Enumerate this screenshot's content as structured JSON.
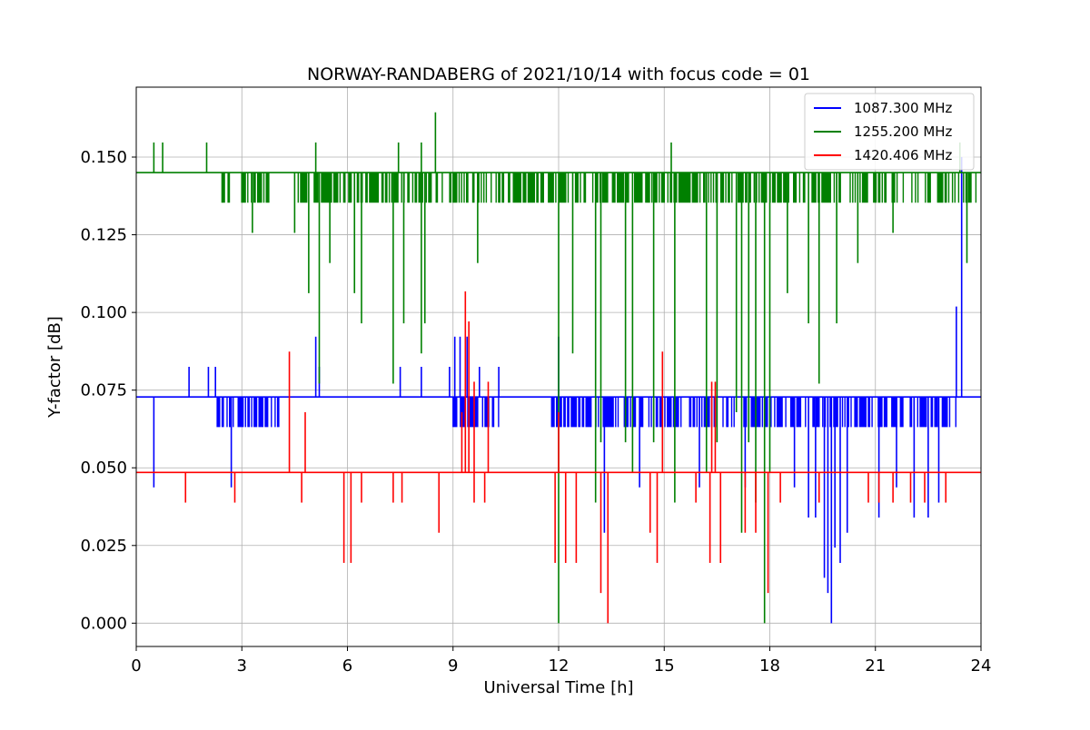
{
  "chart_data": {
    "type": "line",
    "title": "NORWAY-RANDABERG of 2021/10/14 with focus code = 01",
    "xlabel": "Universal Time [h]",
    "ylabel": "Y-factor [dB]",
    "xlim": [
      0,
      24
    ],
    "ylim": [
      -0.0075,
      0.1725
    ],
    "xticks": [
      0,
      3,
      6,
      9,
      12,
      15,
      18,
      21,
      24
    ],
    "xtick_labels": [
      "0",
      "3",
      "6",
      "9",
      "12",
      "15",
      "18",
      "21",
      "24"
    ],
    "yticks": [
      0.0,
      0.025,
      0.05,
      0.075,
      0.1,
      0.125,
      0.15
    ],
    "ytick_labels": [
      "0.000",
      "0.025",
      "0.050",
      "0.075",
      "0.100",
      "0.125",
      "0.150"
    ],
    "grid": true,
    "legend_position": "top-right",
    "series": [
      {
        "name": "1087.300 MHz",
        "color": "#0000ff",
        "baseline": 0.0728,
        "mean_level": 0.0728,
        "lower_level": 0.0631,
        "spikes": [
          [
            1.5,
            0.0825
          ],
          [
            2.05,
            0.0825
          ],
          [
            2.25,
            0.0825
          ],
          [
            5.1,
            0.0922
          ],
          [
            5.2,
            0.0825
          ],
          [
            7.5,
            0.0825
          ],
          [
            8.1,
            0.0825
          ],
          [
            8.9,
            0.0825
          ],
          [
            9.05,
            0.0922
          ],
          [
            9.2,
            0.0922
          ],
          [
            9.4,
            0.0922
          ],
          [
            9.75,
            0.0825
          ],
          [
            10.3,
            0.0825
          ],
          [
            12.0,
            0.0922
          ],
          [
            16.5,
            0.0728
          ],
          [
            23.3,
            0.1019
          ],
          [
            23.45,
            0.15
          ],
          [
            0.5,
            0.0437
          ],
          [
            2.7,
            0.0437
          ],
          [
            13.3,
            0.0291
          ],
          [
            14.3,
            0.0437
          ],
          [
            16.0,
            0.0437
          ],
          [
            17.3,
            0.0437
          ],
          [
            18.7,
            0.0437
          ],
          [
            19.1,
            0.034
          ],
          [
            19.3,
            0.034
          ],
          [
            19.55,
            0.0146
          ],
          [
            19.65,
            0.0097
          ],
          [
            19.75,
            0.0
          ],
          [
            19.85,
            0.0243
          ],
          [
            20.0,
            0.0194
          ],
          [
            20.2,
            0.0291
          ],
          [
            21.1,
            0.034
          ],
          [
            21.6,
            0.0437
          ],
          [
            22.1,
            0.034
          ],
          [
            22.5,
            0.034
          ],
          [
            22.8,
            0.0388
          ]
        ],
        "dense_ranges": [
          [
            2.3,
            4.1
          ],
          [
            9.0,
            10.3
          ],
          [
            11.8,
            16.6
          ],
          [
            16.6,
            23.3
          ]
        ]
      },
      {
        "name": "1255.200 MHz",
        "color": "#008000",
        "baseline": 0.145,
        "mean_level": 0.145,
        "lower_level": 0.1353,
        "spikes": [
          [
            0.5,
            0.1547
          ],
          [
            0.75,
            0.1547
          ],
          [
            2.0,
            0.1547
          ],
          [
            5.1,
            0.1547
          ],
          [
            7.45,
            0.1547
          ],
          [
            8.1,
            0.1547
          ],
          [
            8.5,
            0.1644
          ],
          [
            15.2,
            0.1547
          ],
          [
            23.4,
            0.1547
          ],
          [
            3.3,
            0.1256
          ],
          [
            4.5,
            0.1256
          ],
          [
            4.9,
            0.1062
          ],
          [
            5.2,
            0.0771
          ],
          [
            5.5,
            0.1159
          ],
          [
            6.2,
            0.1062
          ],
          [
            6.4,
            0.0965
          ],
          [
            7.3,
            0.0771
          ],
          [
            7.6,
            0.0965
          ],
          [
            8.2,
            0.0965
          ],
          [
            8.1,
            0.0868
          ],
          [
            9.7,
            0.1159
          ],
          [
            12.0,
            0.0
          ],
          [
            12.4,
            0.0868
          ],
          [
            13.05,
            0.0388
          ],
          [
            13.2,
            0.0582
          ],
          [
            13.9,
            0.0582
          ],
          [
            14.1,
            0.0485
          ],
          [
            14.7,
            0.0582
          ],
          [
            15.3,
            0.0388
          ],
          [
            16.2,
            0.0485
          ],
          [
            16.5,
            0.0582
          ],
          [
            17.05,
            0.0679
          ],
          [
            17.2,
            0.0291
          ],
          [
            17.4,
            0.0582
          ],
          [
            17.6,
            0.0388
          ],
          [
            17.85,
            0.0
          ],
          [
            18.0,
            0.0485
          ],
          [
            18.5,
            0.1062
          ],
          [
            19.1,
            0.0965
          ],
          [
            19.4,
            0.0771
          ],
          [
            19.9,
            0.0965
          ],
          [
            20.5,
            0.1159
          ],
          [
            21.5,
            0.1256
          ],
          [
            23.6,
            0.1159
          ]
        ],
        "dense_ranges": [
          [
            2.4,
            3.8
          ],
          [
            4.6,
            9.0
          ],
          [
            9.0,
            11.5
          ],
          [
            11.5,
            20.6
          ],
          [
            20.6,
            23.9
          ]
        ]
      },
      {
        "name": "1420.406 MHz",
        "color": "#ff0000",
        "baseline": 0.0485,
        "mean_level": 0.0485,
        "lower_level": 0.0485,
        "spikes": [
          [
            4.35,
            0.0874
          ],
          [
            4.8,
            0.0679
          ],
          [
            9.25,
            0.0679
          ],
          [
            9.35,
            0.1068
          ],
          [
            9.45,
            0.0971
          ],
          [
            9.6,
            0.0777
          ],
          [
            10.0,
            0.0777
          ],
          [
            12.0,
            0.0679
          ],
          [
            14.95,
            0.0874
          ],
          [
            16.35,
            0.0777
          ],
          [
            16.45,
            0.0777
          ],
          [
            1.4,
            0.0388
          ],
          [
            2.8,
            0.0388
          ],
          [
            4.7,
            0.0388
          ],
          [
            5.9,
            0.0194
          ],
          [
            6.1,
            0.0194
          ],
          [
            6.4,
            0.0388
          ],
          [
            7.3,
            0.0388
          ],
          [
            7.55,
            0.0388
          ],
          [
            8.6,
            0.0291
          ],
          [
            9.6,
            0.0388
          ],
          [
            9.9,
            0.0388
          ],
          [
            11.9,
            0.0194
          ],
          [
            12.2,
            0.0194
          ],
          [
            12.5,
            0.0194
          ],
          [
            13.2,
            0.0097
          ],
          [
            13.4,
            0.0
          ],
          [
            14.6,
            0.0291
          ],
          [
            14.8,
            0.0194
          ],
          [
            15.9,
            0.0388
          ],
          [
            16.3,
            0.0194
          ],
          [
            16.6,
            0.0194
          ],
          [
            17.3,
            0.0291
          ],
          [
            17.6,
            0.0291
          ],
          [
            17.95,
            0.0097
          ],
          [
            18.3,
            0.0388
          ],
          [
            19.4,
            0.0388
          ],
          [
            20.8,
            0.0388
          ],
          [
            21.1,
            0.0388
          ],
          [
            21.5,
            0.0388
          ],
          [
            22.0,
            0.0388
          ],
          [
            22.4,
            0.0388
          ],
          [
            23.0,
            0.0388
          ]
        ],
        "dense_ranges": [
          [
            0.0,
            23.8
          ]
        ]
      }
    ]
  }
}
